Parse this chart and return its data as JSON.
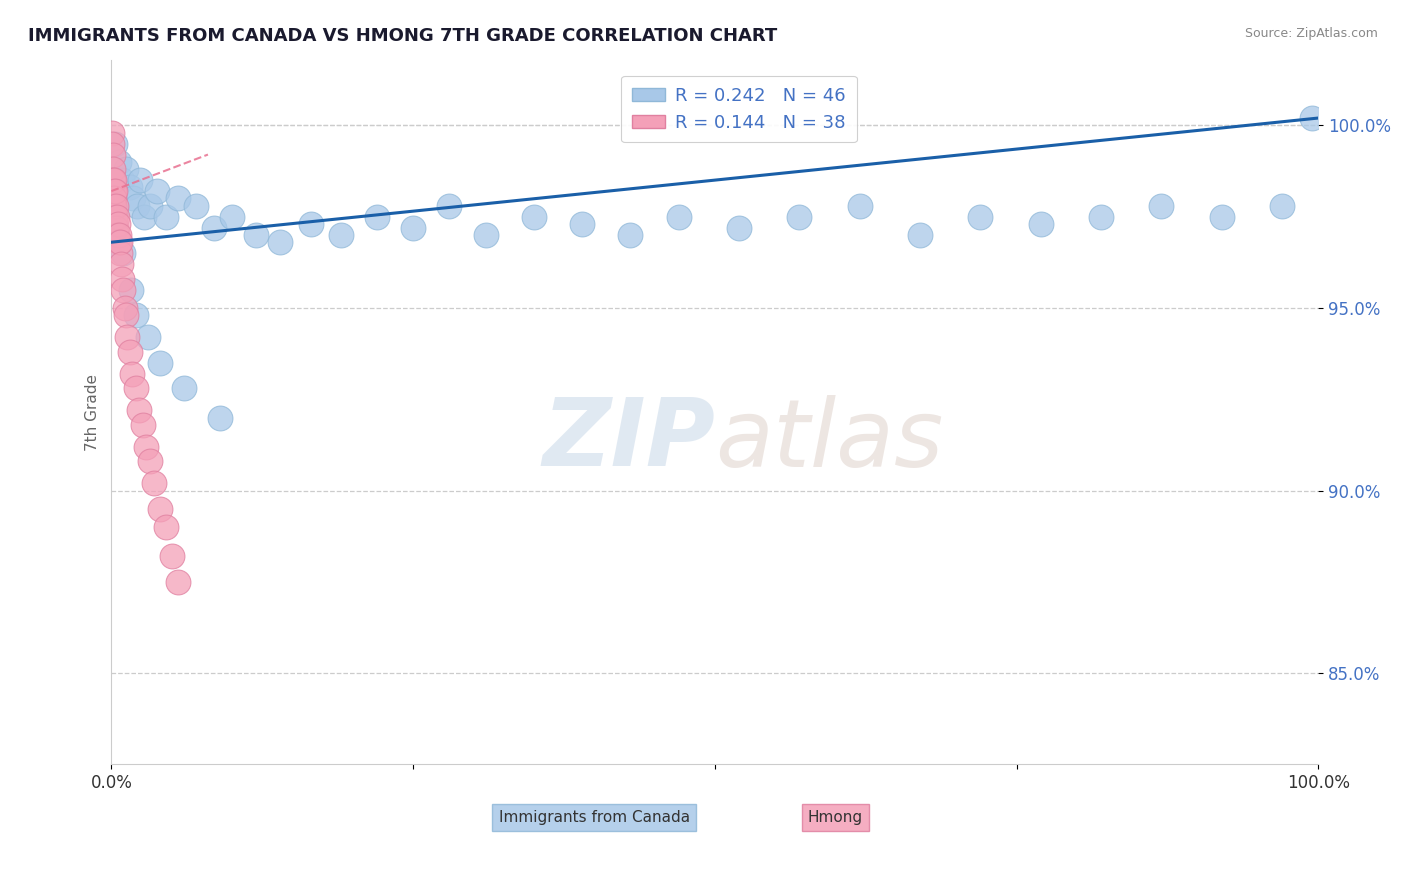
{
  "title": "IMMIGRANTS FROM CANADA VS HMONG 7TH GRADE CORRELATION CHART",
  "source": "Source: ZipAtlas.com",
  "ylabel": "7th Grade",
  "legend_label1": "Immigrants from Canada",
  "legend_label2": "Hmong",
  "R1": 0.242,
  "N1": 46,
  "R2": 0.144,
  "N2": 38,
  "xmin": 0.0,
  "xmax": 100.0,
  "ymin": 82.5,
  "ymax": 101.8,
  "yticks": [
    85.0,
    90.0,
    95.0,
    100.0
  ],
  "ytick_labels": [
    "85.0%",
    "90.0%",
    "95.0%",
    "100.0%"
  ],
  "color_blue": "#a8c8e8",
  "color_pink": "#f4a0b8",
  "trend_color": "#1a5fa8",
  "trend_pink_color": "#e87090",
  "blue_trend_y0": 96.8,
  "blue_trend_y1": 100.2,
  "pink_trend_x0": 0.0,
  "pink_trend_x1": 8.0,
  "pink_trend_y0": 98.2,
  "pink_trend_y1": 99.2,
  "blue_points_x": [
    0.3,
    0.6,
    0.9,
    1.2,
    1.5,
    1.8,
    2.1,
    2.4,
    2.7,
    3.2,
    3.8,
    4.5,
    5.5,
    7.0,
    8.5,
    10.0,
    12.0,
    14.0,
    16.5,
    19.0,
    22.0,
    25.0,
    28.0,
    31.0,
    35.0,
    39.0,
    43.0,
    47.0,
    52.0,
    57.0,
    62.0,
    67.0,
    72.0,
    77.0,
    82.0,
    87.0,
    92.0,
    97.0,
    99.5,
    1.0,
    1.6,
    2.0,
    3.0,
    4.0,
    6.0,
    9.0
  ],
  "blue_points_y": [
    99.5,
    99.0,
    98.5,
    98.8,
    98.3,
    98.0,
    97.8,
    98.5,
    97.5,
    97.8,
    98.2,
    97.5,
    98.0,
    97.8,
    97.2,
    97.5,
    97.0,
    96.8,
    97.3,
    97.0,
    97.5,
    97.2,
    97.8,
    97.0,
    97.5,
    97.3,
    97.0,
    97.5,
    97.2,
    97.5,
    97.8,
    97.0,
    97.5,
    97.3,
    97.5,
    97.8,
    97.5,
    97.8,
    100.2,
    96.5,
    95.5,
    94.8,
    94.2,
    93.5,
    92.8,
    92.0
  ],
  "pink_points_x": [
    0.05,
    0.08,
    0.1,
    0.12,
    0.15,
    0.18,
    0.2,
    0.22,
    0.25,
    0.28,
    0.3,
    0.35,
    0.4,
    0.45,
    0.5,
    0.55,
    0.6,
    0.65,
    0.7,
    0.75,
    0.8,
    0.9,
    1.0,
    1.1,
    1.2,
    1.3,
    1.5,
    1.7,
    2.0,
    2.3,
    2.6,
    2.9,
    3.2,
    3.5,
    4.0,
    4.5,
    5.0,
    5.5
  ],
  "pink_points_y": [
    99.8,
    99.5,
    99.2,
    98.8,
    98.5,
    98.2,
    98.5,
    98.0,
    97.8,
    98.2,
    97.5,
    97.8,
    97.2,
    97.5,
    97.0,
    97.3,
    96.8,
    97.0,
    96.5,
    96.8,
    96.2,
    95.8,
    95.5,
    95.0,
    94.8,
    94.2,
    93.8,
    93.2,
    92.8,
    92.2,
    91.8,
    91.2,
    90.8,
    90.2,
    89.5,
    89.0,
    88.2,
    87.5
  ]
}
